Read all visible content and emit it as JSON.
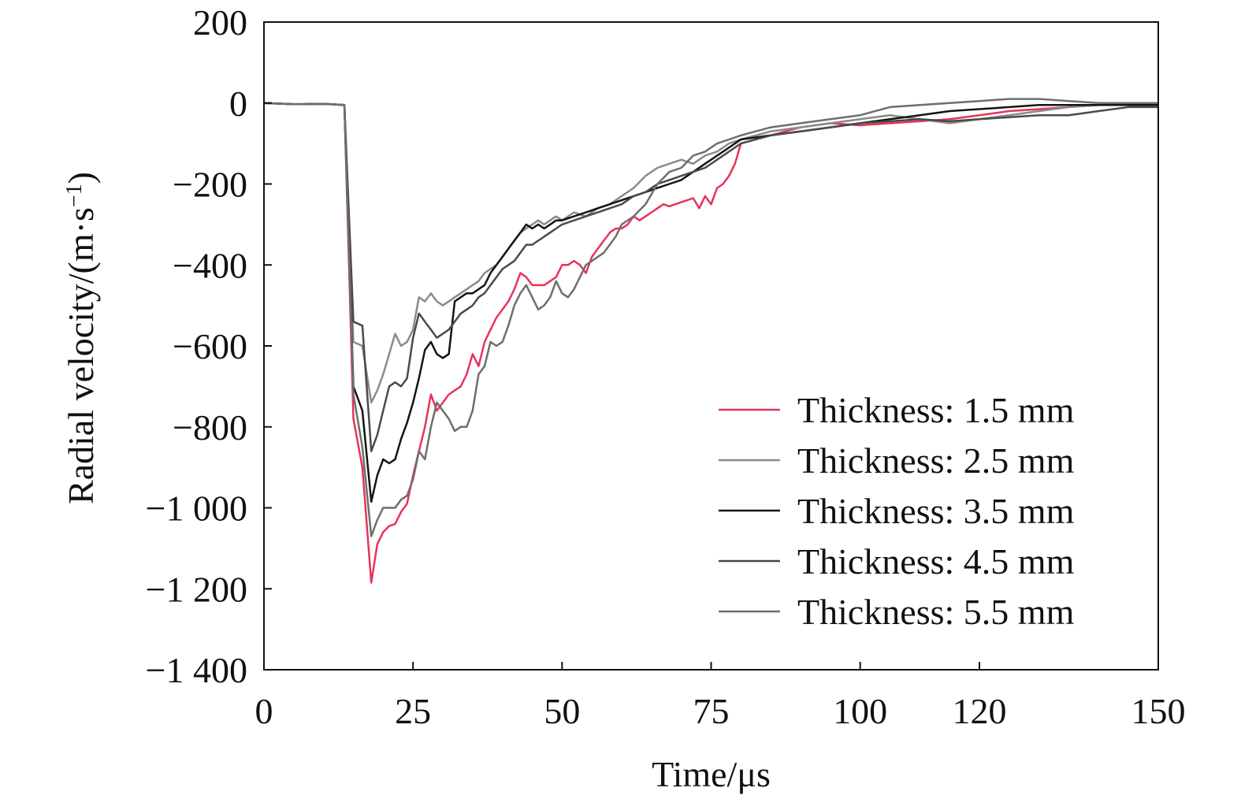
{
  "chart_data": {
    "type": "line",
    "title": "",
    "xlabel": "Time/μs",
    "ylabel": "Radial velocity/(m·s",
    "ylabel_sup": "−1",
    "ylabel_close": ")",
    "xlim": [
      0,
      150
    ],
    "ylim": [
      -1400,
      200
    ],
    "x_ticks": [
      0,
      25,
      50,
      75,
      100,
      120,
      150
    ],
    "x_tick_labels": [
      "0",
      "25",
      "50",
      "75",
      "100",
      "120",
      "150"
    ],
    "y_ticks": [
      200,
      0,
      -200,
      -400,
      -600,
      -800,
      -1000,
      -1200,
      -1400
    ],
    "y_tick_labels": [
      "200",
      "0",
      "−200",
      "−400",
      "−600",
      "−800",
      "−1 000",
      "−1 200",
      "−1 400"
    ],
    "grid": false,
    "legend_position": "lower-right",
    "series": [
      {
        "name": "Thickness: 1.5 mm",
        "color": "#e8335b",
        "x": [
          0,
          5,
          10,
          13.5,
          15,
          16.5,
          18,
          19,
          20,
          21,
          22,
          23,
          24,
          25,
          26,
          27,
          28,
          29,
          30,
          31,
          32,
          33,
          34,
          35,
          36,
          37,
          38,
          39,
          40,
          41,
          42,
          43,
          44,
          45,
          46,
          47,
          48,
          49,
          50,
          51,
          52,
          53,
          54,
          55,
          56,
          57,
          58,
          59,
          60,
          61,
          62,
          63,
          64,
          65,
          66,
          67,
          68,
          69,
          70,
          71,
          72,
          73,
          74,
          75,
          76,
          77,
          78,
          79,
          80,
          85,
          90,
          95,
          100,
          105,
          110,
          115,
          120,
          125,
          130,
          135,
          140,
          145,
          150
        ],
        "y": [
          0,
          -3,
          -2,
          -5,
          -780,
          -900,
          -1185,
          -1090,
          -1060,
          -1045,
          -1040,
          -1010,
          -990,
          -920,
          -860,
          -800,
          -720,
          -760,
          -740,
          -720,
          -710,
          -700,
          -670,
          -620,
          -650,
          -590,
          -560,
          -530,
          -510,
          -490,
          -460,
          -420,
          -430,
          -450,
          -450,
          -450,
          -440,
          -430,
          -400,
          -400,
          -390,
          -400,
          -420,
          -380,
          -360,
          -340,
          -320,
          -310,
          -310,
          -300,
          -280,
          -290,
          -280,
          -270,
          -260,
          -250,
          -255,
          -250,
          -245,
          -240,
          -235,
          -260,
          -230,
          -250,
          -210,
          -200,
          -180,
          -150,
          -100,
          -80,
          -60,
          -50,
          -55,
          -50,
          -45,
          -40,
          -30,
          -20,
          -15,
          -10,
          -5,
          -5,
          -5
        ]
      },
      {
        "name": "Thickness: 2.5 mm",
        "color": "#8a8a8a",
        "x": [
          0,
          5,
          10,
          13.5,
          15,
          16.5,
          18,
          19,
          20,
          21,
          22,
          23,
          24,
          25,
          26,
          27,
          28,
          29,
          30,
          31,
          32,
          33,
          34,
          35,
          36,
          37,
          38,
          39,
          40,
          41,
          42,
          43,
          44,
          45,
          46,
          47,
          48,
          49,
          50,
          52,
          54,
          56,
          58,
          60,
          62,
          64,
          66,
          68,
          70,
          72,
          74,
          76,
          78,
          80,
          85,
          90,
          95,
          100,
          105,
          110,
          115,
          120,
          125,
          130,
          135,
          140,
          145,
          150
        ],
        "y": [
          0,
          -3,
          -2,
          -5,
          -590,
          -600,
          -740,
          -710,
          -670,
          -620,
          -570,
          -600,
          -590,
          -560,
          -480,
          -490,
          -470,
          -490,
          -500,
          -490,
          -480,
          -470,
          -460,
          -450,
          -440,
          -420,
          -410,
          -400,
          -380,
          -360,
          -340,
          -320,
          -310,
          -300,
          -290,
          -300,
          -290,
          -280,
          -290,
          -270,
          -280,
          -260,
          -250,
          -230,
          -210,
          -180,
          -160,
          -150,
          -140,
          -150,
          -130,
          -120,
          -100,
          -90,
          -70,
          -60,
          -50,
          -40,
          -30,
          -40,
          -50,
          -40,
          -30,
          -20,
          -10,
          -5,
          -5,
          -5
        ]
      },
      {
        "name": "Thickness: 3.5 mm",
        "color": "#141414",
        "x": [
          0,
          5,
          10,
          13.5,
          15,
          16.5,
          18,
          19,
          20,
          21,
          22,
          23,
          24,
          25,
          26,
          27,
          28,
          29,
          30,
          31,
          32,
          33,
          34,
          35,
          36,
          37,
          38,
          39,
          40,
          41,
          42,
          43,
          44,
          45,
          46,
          47,
          48,
          49,
          50,
          52,
          54,
          56,
          58,
          60,
          62,
          64,
          66,
          68,
          70,
          72,
          74,
          76,
          78,
          80,
          85,
          90,
          95,
          100,
          105,
          110,
          115,
          120,
          125,
          130,
          135,
          140,
          145,
          150
        ],
        "y": [
          0,
          -3,
          -2,
          -5,
          -700,
          -760,
          -985,
          -920,
          -880,
          -890,
          -880,
          -830,
          -790,
          -740,
          -680,
          -610,
          -590,
          -620,
          -630,
          -620,
          -490,
          -480,
          -470,
          -470,
          -460,
          -450,
          -420,
          -400,
          -380,
          -360,
          -340,
          -320,
          -300,
          -310,
          -300,
          -310,
          -300,
          -290,
          -290,
          -280,
          -270,
          -260,
          -250,
          -240,
          -230,
          -220,
          -210,
          -200,
          -190,
          -170,
          -150,
          -130,
          -110,
          -90,
          -80,
          -70,
          -60,
          -50,
          -40,
          -30,
          -20,
          -15,
          -10,
          -5,
          -5,
          -5,
          -5,
          -5
        ]
      },
      {
        "name": "Thickness: 4.5 mm",
        "color": "#4a4a4a",
        "x": [
          0,
          5,
          10,
          13.5,
          15,
          16.5,
          18,
          19,
          20,
          21,
          22,
          23,
          24,
          25,
          26,
          27,
          28,
          29,
          30,
          31,
          32,
          33,
          34,
          35,
          36,
          37,
          38,
          39,
          40,
          41,
          42,
          43,
          44,
          45,
          46,
          47,
          48,
          49,
          50,
          52,
          54,
          56,
          58,
          60,
          62,
          64,
          66,
          68,
          70,
          72,
          74,
          76,
          78,
          80,
          85,
          90,
          95,
          100,
          105,
          110,
          115,
          120,
          125,
          130,
          135,
          140,
          145,
          150
        ],
        "y": [
          0,
          -3,
          -2,
          -5,
          -540,
          -550,
          -860,
          -820,
          -760,
          -700,
          -690,
          -700,
          -680,
          -580,
          -520,
          -540,
          -560,
          -580,
          -570,
          -560,
          -540,
          -520,
          -510,
          -500,
          -480,
          -470,
          -450,
          -430,
          -410,
          -400,
          -390,
          -370,
          -350,
          -350,
          -340,
          -330,
          -320,
          -310,
          -300,
          -290,
          -280,
          -270,
          -260,
          -250,
          -230,
          -220,
          -200,
          -190,
          -180,
          -170,
          -160,
          -140,
          -120,
          -100,
          -80,
          -70,
          -60,
          -50,
          -45,
          -40,
          -45,
          -40,
          -35,
          -30,
          -30,
          -20,
          -10,
          -10
        ]
      },
      {
        "name": "Thickness: 5.5 mm",
        "color": "#6e6e6e",
        "x": [
          0,
          5,
          10,
          13.5,
          15,
          16.5,
          18,
          19,
          20,
          21,
          22,
          23,
          24,
          25,
          26,
          27,
          28,
          29,
          30,
          31,
          32,
          33,
          34,
          35,
          36,
          37,
          38,
          39,
          40,
          41,
          42,
          43,
          44,
          45,
          46,
          47,
          48,
          49,
          50,
          51,
          52,
          53,
          54,
          55,
          56,
          57,
          58,
          59,
          60,
          62,
          64,
          66,
          68,
          70,
          72,
          74,
          76,
          78,
          80,
          85,
          90,
          95,
          100,
          105,
          110,
          115,
          120,
          125,
          130,
          135,
          140,
          145,
          150
        ],
        "y": [
          0,
          -3,
          -2,
          -5,
          -720,
          -850,
          -1070,
          -1030,
          -1000,
          -1000,
          -1000,
          -980,
          -970,
          -930,
          -860,
          -880,
          -800,
          -740,
          -760,
          -780,
          -810,
          -800,
          -800,
          -760,
          -670,
          -650,
          -590,
          -600,
          -590,
          -550,
          -500,
          -470,
          -450,
          -480,
          -510,
          -500,
          -480,
          -440,
          -470,
          -480,
          -460,
          -430,
          -400,
          -390,
          -380,
          -370,
          -350,
          -330,
          -300,
          -280,
          -250,
          -200,
          -170,
          -160,
          -130,
          -120,
          -100,
          -90,
          -80,
          -60,
          -50,
          -40,
          -30,
          -10,
          -5,
          0,
          5,
          10,
          10,
          5,
          0,
          0,
          0
        ]
      }
    ]
  }
}
